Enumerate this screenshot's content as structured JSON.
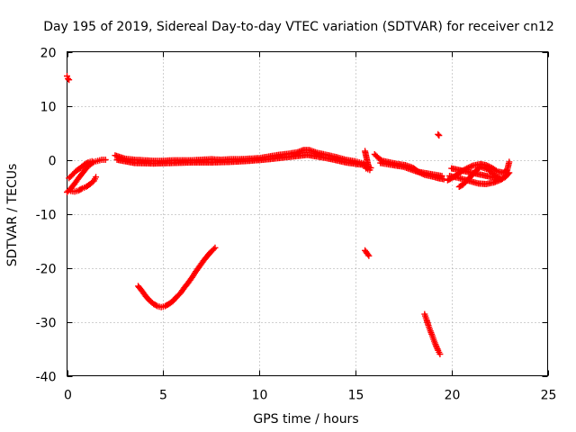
{
  "chart_data": {
    "type": "scatter",
    "title": "Day 195 of 2019, Sidereal Day-to-day VTEC variation (SDTVAR) for receiver cn12",
    "xlabel": "GPS time / hours",
    "ylabel": "SDTVAR / TECUs",
    "xlim": [
      0,
      25
    ],
    "ylim": [
      -40,
      20
    ],
    "xticks": [
      0,
      5,
      10,
      15,
      20,
      25
    ],
    "yticks": [
      -40,
      -30,
      -20,
      -10,
      0,
      10,
      20
    ],
    "xtick_labels": [
      "0",
      "5",
      "10",
      "15",
      "20",
      "25"
    ],
    "ytick_labels": [
      "-40",
      "-30",
      "-20",
      "-10",
      "0",
      "10",
      "20"
    ],
    "grid": true,
    "marker": "plus",
    "color": "#ff0000",
    "series": [
      {
        "name": "isolated start",
        "points": [
          [
            0.0,
            15.5
          ],
          [
            0.05,
            15.0
          ],
          [
            0.1,
            14.8
          ]
        ]
      },
      {
        "name": "initial arcs A",
        "points": [
          [
            0.0,
            -6.0
          ],
          [
            0.2,
            -5.3
          ],
          [
            0.4,
            -4.4
          ],
          [
            0.6,
            -3.4
          ],
          [
            0.8,
            -2.5
          ],
          [
            1.0,
            -1.6
          ],
          [
            1.2,
            -0.9
          ],
          [
            1.4,
            -0.4
          ],
          [
            1.6,
            -0.2
          ],
          [
            1.8,
            0.0
          ],
          [
            2.0,
            0.0
          ]
        ]
      },
      {
        "name": "initial arcs B",
        "points": [
          [
            0.1,
            -3.4
          ],
          [
            0.3,
            -2.7
          ],
          [
            0.5,
            -2.0
          ],
          [
            0.7,
            -1.5
          ],
          [
            0.9,
            -0.9
          ],
          [
            1.1,
            -0.5
          ],
          [
            1.3,
            -0.3
          ]
        ]
      },
      {
        "name": "initial arcs C",
        "points": [
          [
            0.2,
            -5.8
          ],
          [
            0.4,
            -5.9
          ],
          [
            0.6,
            -5.7
          ],
          [
            0.8,
            -5.3
          ],
          [
            1.0,
            -5.0
          ],
          [
            1.2,
            -4.5
          ],
          [
            1.4,
            -3.9
          ],
          [
            1.5,
            -3.2
          ]
        ]
      },
      {
        "name": "main band",
        "points": [
          [
            2.5,
            0.8
          ],
          [
            3.0,
            0.2
          ],
          [
            3.5,
            0.0
          ],
          [
            4.0,
            -0.1
          ],
          [
            4.5,
            -0.2
          ],
          [
            5.0,
            -0.2
          ],
          [
            5.5,
            -0.1
          ],
          [
            6.0,
            -0.1
          ],
          [
            6.5,
            -0.1
          ],
          [
            7.0,
            0.0
          ],
          [
            7.5,
            0.1
          ],
          [
            8.0,
            0.0
          ],
          [
            8.5,
            0.1
          ],
          [
            9.0,
            0.1
          ],
          [
            9.5,
            0.2
          ],
          [
            10.0,
            0.3
          ],
          [
            10.5,
            0.6
          ],
          [
            11.0,
            0.9
          ],
          [
            11.5,
            1.1
          ],
          [
            12.0,
            1.4
          ],
          [
            12.3,
            1.8
          ],
          [
            12.6,
            1.8
          ],
          [
            13.0,
            1.3
          ],
          [
            13.5,
            0.9
          ],
          [
            14.0,
            0.5
          ],
          [
            14.5,
            0.0
          ],
          [
            15.0,
            -0.3
          ],
          [
            15.2,
            -0.5
          ],
          [
            15.4,
            -0.7
          ],
          [
            15.6,
            -1.2
          ],
          [
            15.8,
            -1.5
          ]
        ]
      },
      {
        "name": "main band lower edge",
        "points": [
          [
            2.6,
            0.0
          ],
          [
            3.5,
            -0.6
          ],
          [
            4.5,
            -0.7
          ],
          [
            5.5,
            -0.6
          ],
          [
            6.5,
            -0.5
          ],
          [
            7.5,
            -0.5
          ],
          [
            8.5,
            -0.4
          ],
          [
            9.5,
            -0.2
          ],
          [
            10.5,
            0.1
          ],
          [
            11.5,
            0.5
          ],
          [
            12.5,
            0.9
          ],
          [
            13.5,
            0.3
          ],
          [
            14.5,
            -0.5
          ],
          [
            15.5,
            -1.0
          ]
        ]
      },
      {
        "name": "spike near 15.5h",
        "points": [
          [
            15.5,
            1.6
          ],
          [
            15.55,
            0.8
          ],
          [
            15.6,
            0.0
          ],
          [
            15.65,
            -0.8
          ],
          [
            15.7,
            -1.4
          ],
          [
            15.55,
            -1.6
          ],
          [
            15.75,
            -1.9
          ]
        ]
      },
      {
        "name": "afternoon band",
        "points": [
          [
            16.0,
            1.0
          ],
          [
            16.2,
            0.3
          ],
          [
            16.4,
            -0.2
          ],
          [
            16.8,
            -0.5
          ],
          [
            17.2,
            -0.8
          ],
          [
            17.6,
            -1.0
          ],
          [
            18.0,
            -1.5
          ],
          [
            18.3,
            -2.3
          ],
          [
            18.6,
            -2.8
          ],
          [
            19.0,
            -3.1
          ],
          [
            19.3,
            -3.4
          ],
          [
            19.6,
            -3.6
          ]
        ]
      },
      {
        "name": "afternoon band upper",
        "points": [
          [
            16.3,
            -0.6
          ],
          [
            16.8,
            -0.9
          ],
          [
            17.5,
            -1.3
          ],
          [
            18.2,
            -2.2
          ],
          [
            19.0,
            -2.7
          ],
          [
            19.5,
            -3.0
          ]
        ]
      },
      {
        "name": "isolated 19.3h",
        "points": [
          [
            19.3,
            4.7
          ],
          [
            19.35,
            4.5
          ]
        ]
      },
      {
        "name": "late tangle A",
        "points": [
          [
            19.8,
            -3.8
          ],
          [
            20.2,
            -3.0
          ],
          [
            20.5,
            -2.2
          ],
          [
            20.8,
            -1.6
          ],
          [
            21.1,
            -1.1
          ],
          [
            21.5,
            -0.8
          ],
          [
            21.8,
            -1.0
          ],
          [
            22.1,
            -1.5
          ],
          [
            22.4,
            -2.2
          ],
          [
            22.7,
            -2.4
          ],
          [
            22.9,
            -1.9
          ],
          [
            23.0,
            -0.4
          ]
        ]
      },
      {
        "name": "late tangle B",
        "points": [
          [
            19.9,
            -3.0
          ],
          [
            20.3,
            -3.3
          ],
          [
            20.7,
            -3.7
          ],
          [
            21.0,
            -4.0
          ],
          [
            21.4,
            -4.4
          ],
          [
            21.8,
            -4.5
          ],
          [
            22.2,
            -4.2
          ],
          [
            22.5,
            -3.8
          ],
          [
            22.8,
            -3.2
          ],
          [
            23.0,
            -2.4
          ]
        ]
      },
      {
        "name": "late tangle C",
        "points": [
          [
            20.4,
            -5.0
          ],
          [
            20.6,
            -4.6
          ],
          [
            20.9,
            -3.5
          ],
          [
            21.2,
            -2.3
          ],
          [
            21.5,
            -1.3
          ],
          [
            21.9,
            -1.8
          ],
          [
            22.3,
            -3.0
          ],
          [
            22.6,
            -3.6
          ],
          [
            20.0,
            -1.6
          ]
        ]
      },
      {
        "name": "small cluster 15.5h",
        "points": [
          [
            15.5,
            -16.8
          ],
          [
            15.6,
            -17.3
          ],
          [
            15.7,
            -17.8
          ]
        ]
      },
      {
        "name": "U-shaped arc",
        "points": [
          [
            3.7,
            -23.4
          ],
          [
            3.9,
            -24.3
          ],
          [
            4.1,
            -25.3
          ],
          [
            4.3,
            -26.1
          ],
          [
            4.5,
            -26.7
          ],
          [
            4.7,
            -27.1
          ],
          [
            4.9,
            -27.3
          ],
          [
            5.1,
            -27.1
          ],
          [
            5.3,
            -26.7
          ],
          [
            5.5,
            -26.2
          ],
          [
            5.7,
            -25.4
          ],
          [
            5.9,
            -24.7
          ],
          [
            6.1,
            -23.7
          ],
          [
            6.3,
            -22.8
          ],
          [
            6.5,
            -21.8
          ],
          [
            6.7,
            -20.7
          ],
          [
            6.9,
            -19.7
          ],
          [
            7.1,
            -18.7
          ],
          [
            7.3,
            -17.8
          ],
          [
            7.5,
            -17.0
          ],
          [
            7.7,
            -16.3
          ]
        ]
      },
      {
        "name": "descending arc 19h",
        "points": [
          [
            18.6,
            -28.6
          ],
          [
            18.7,
            -29.6
          ],
          [
            18.8,
            -30.7
          ],
          [
            18.9,
            -31.7
          ],
          [
            19.0,
            -32.6
          ],
          [
            19.1,
            -33.6
          ],
          [
            19.2,
            -34.5
          ],
          [
            19.3,
            -35.3
          ],
          [
            19.4,
            -36.0
          ]
        ]
      }
    ]
  }
}
